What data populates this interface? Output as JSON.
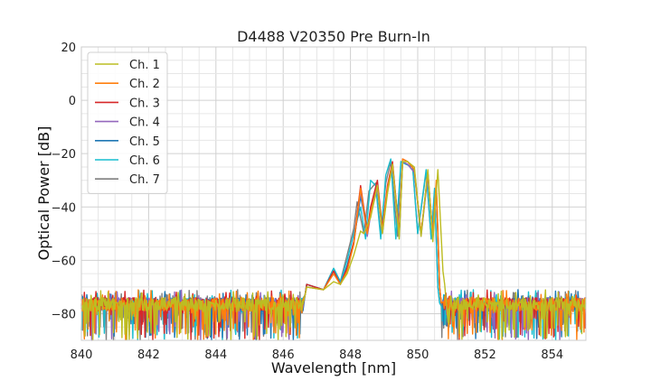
{
  "chart_data": {
    "type": "line",
    "title": "D4488 V20350 Pre Burn-In",
    "xlabel": "Wavelength [nm]",
    "ylabel": "Optical Power [dB]",
    "xlim": [
      840,
      855
    ],
    "ylim": [
      -90,
      20
    ],
    "xticks": [
      "840",
      "842",
      "844",
      "846",
      "848",
      "850",
      "852",
      "854"
    ],
    "yticks": [
      "20",
      "0",
      "−20",
      "−40",
      "−60",
      "−80"
    ],
    "grid": true,
    "legend_position": "top-left",
    "series": [
      {
        "name": "Ch. 1",
        "color": "#bcbd22",
        "points": [
          [
            846.7,
            -70
          ],
          [
            847.2,
            -71
          ],
          [
            847.5,
            -68
          ],
          [
            847.7,
            -69
          ],
          [
            847.9,
            -65
          ],
          [
            848.1,
            -58
          ],
          [
            848.3,
            -49
          ],
          [
            848.4,
            -50
          ],
          [
            848.6,
            -44
          ],
          [
            848.8,
            -32
          ],
          [
            848.95,
            -50
          ],
          [
            849.1,
            -35
          ],
          [
            849.25,
            -24
          ],
          [
            849.45,
            -52
          ],
          [
            849.55,
            -23
          ],
          [
            849.7,
            -23
          ],
          [
            849.9,
            -25
          ],
          [
            850.1,
            -51
          ],
          [
            850.3,
            -26
          ],
          [
            850.45,
            -53
          ],
          [
            850.6,
            -26
          ],
          [
            850.75,
            -64
          ],
          [
            850.8,
            -69
          ]
        ]
      },
      {
        "name": "Ch. 2",
        "color": "#ff7f0e",
        "points": [
          [
            846.7,
            -70
          ],
          [
            847.2,
            -71
          ],
          [
            847.5,
            -65
          ],
          [
            847.7,
            -69
          ],
          [
            847.9,
            -64
          ],
          [
            848.1,
            -54
          ],
          [
            848.3,
            -33
          ],
          [
            848.5,
            -50
          ],
          [
            848.6,
            -42
          ],
          [
            848.8,
            -32
          ],
          [
            848.95,
            -49
          ],
          [
            849.1,
            -33
          ],
          [
            849.25,
            -24
          ],
          [
            849.45,
            -50
          ],
          [
            849.55,
            -22
          ],
          [
            849.7,
            -23
          ],
          [
            849.9,
            -26
          ],
          [
            850.1,
            -50
          ],
          [
            850.3,
            -27
          ],
          [
            850.45,
            -51
          ],
          [
            850.55,
            -30
          ],
          [
            850.65,
            -70
          ]
        ]
      },
      {
        "name": "Ch. 3",
        "color": "#d62728",
        "points": [
          [
            846.7,
            -69
          ],
          [
            847.2,
            -71
          ],
          [
            847.5,
            -64
          ],
          [
            847.7,
            -69
          ],
          [
            847.9,
            -63
          ],
          [
            848.1,
            -53
          ],
          [
            848.3,
            -32
          ],
          [
            848.5,
            -49
          ],
          [
            848.6,
            -40
          ],
          [
            848.8,
            -30
          ],
          [
            848.95,
            -48
          ],
          [
            849.1,
            -32
          ],
          [
            849.25,
            -23
          ],
          [
            849.45,
            -50
          ],
          [
            849.55,
            -22
          ],
          [
            849.7,
            -23
          ],
          [
            849.9,
            -26
          ],
          [
            850.1,
            -50
          ],
          [
            850.3,
            -27
          ],
          [
            850.45,
            -51
          ],
          [
            850.55,
            -32
          ],
          [
            850.65,
            -70
          ]
        ]
      },
      {
        "name": "Ch. 4",
        "color": "#9467bd",
        "points": [
          [
            846.7,
            -70
          ],
          [
            847.2,
            -71
          ],
          [
            847.5,
            -65
          ],
          [
            847.7,
            -69
          ],
          [
            847.9,
            -63
          ],
          [
            848.1,
            -54
          ],
          [
            848.3,
            -34
          ],
          [
            848.5,
            -51
          ],
          [
            848.6,
            -43
          ],
          [
            848.8,
            -33
          ],
          [
            848.95,
            -50
          ],
          [
            849.1,
            -34
          ],
          [
            849.25,
            -25
          ],
          [
            849.45,
            -51
          ],
          [
            849.55,
            -23
          ],
          [
            849.7,
            -24
          ],
          [
            849.9,
            -27
          ],
          [
            850.1,
            -51
          ],
          [
            850.3,
            -28
          ],
          [
            850.45,
            -52
          ],
          [
            850.55,
            -33
          ],
          [
            850.65,
            -70
          ]
        ]
      },
      {
        "name": "Ch. 5",
        "color": "#1f77b4",
        "points": [
          [
            846.7,
            -69
          ],
          [
            847.2,
            -71
          ],
          [
            847.5,
            -64
          ],
          [
            847.7,
            -69
          ],
          [
            847.9,
            -62
          ],
          [
            848.1,
            -53
          ],
          [
            848.3,
            -36
          ],
          [
            848.5,
            -49
          ],
          [
            848.6,
            -41
          ],
          [
            848.8,
            -32
          ],
          [
            848.95,
            -49
          ],
          [
            849.1,
            -33
          ],
          [
            849.25,
            -24
          ],
          [
            849.45,
            -50
          ],
          [
            849.55,
            -23
          ],
          [
            849.7,
            -24
          ],
          [
            849.9,
            -27
          ],
          [
            850.1,
            -50
          ],
          [
            850.3,
            -28
          ],
          [
            850.45,
            -51
          ],
          [
            850.55,
            -33
          ],
          [
            850.65,
            -70
          ]
        ]
      },
      {
        "name": "Ch. 6",
        "color": "#17becf",
        "points": [
          [
            846.7,
            -69
          ],
          [
            847.2,
            -71
          ],
          [
            847.5,
            -63
          ],
          [
            847.7,
            -68
          ],
          [
            847.9,
            -60
          ],
          [
            848.1,
            -50
          ],
          [
            848.3,
            -40
          ],
          [
            848.45,
            -52
          ],
          [
            848.6,
            -30
          ],
          [
            848.75,
            -32
          ],
          [
            848.9,
            -52
          ],
          [
            849.05,
            -28
          ],
          [
            849.2,
            -22
          ],
          [
            849.35,
            -52
          ],
          [
            849.5,
            -23
          ],
          [
            849.65,
            -24
          ],
          [
            849.85,
            -25
          ],
          [
            850.0,
            -50
          ],
          [
            850.25,
            -26
          ],
          [
            850.4,
            -52
          ],
          [
            850.5,
            -33
          ],
          [
            850.6,
            -70
          ]
        ]
      },
      {
        "name": "Ch. 7",
        "color": "#7f7f7f",
        "points": [
          [
            846.7,
            -69
          ],
          [
            847.2,
            -71
          ],
          [
            847.5,
            -63
          ],
          [
            847.7,
            -68
          ],
          [
            847.9,
            -58
          ],
          [
            848.1,
            -48
          ],
          [
            848.2,
            -38
          ],
          [
            848.4,
            -50
          ],
          [
            848.55,
            -34
          ],
          [
            848.75,
            -31
          ],
          [
            848.9,
            -50
          ],
          [
            849.05,
            -31
          ],
          [
            849.2,
            -23
          ],
          [
            849.4,
            -51
          ],
          [
            849.5,
            -23
          ],
          [
            849.65,
            -24
          ],
          [
            849.85,
            -25
          ],
          [
            850.0,
            -50
          ],
          [
            850.25,
            -27
          ],
          [
            850.4,
            -52
          ],
          [
            850.5,
            -34
          ],
          [
            850.6,
            -70
          ]
        ]
      }
    ]
  }
}
